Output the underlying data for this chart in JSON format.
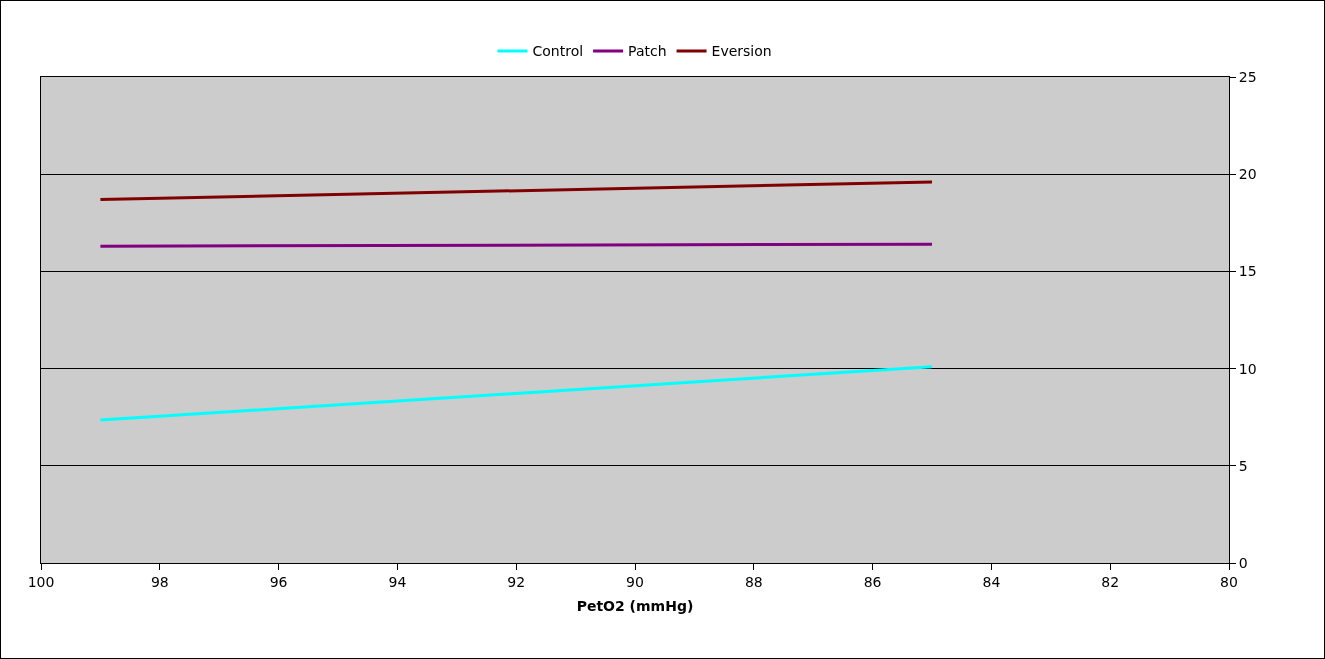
{
  "chart_data": {
    "type": "line",
    "xlabel": "PetO2 (mmHg)",
    "x": [
      99,
      85
    ],
    "series": [
      {
        "name": "Control",
        "color": "#00ffff",
        "values": [
          7.35,
          10.1
        ]
      },
      {
        "name": "Patch",
        "color": "#800080",
        "values": [
          16.3,
          16.4
        ]
      },
      {
        "name": "Eversion",
        "color": "#800000",
        "values": [
          18.7,
          19.6
        ]
      }
    ],
    "xlim": [
      100,
      80
    ],
    "xticks": [
      100,
      98,
      96,
      94,
      92,
      90,
      88,
      86,
      84,
      82,
      80
    ],
    "ylim": [
      0,
      25
    ],
    "yticks": [
      0,
      5,
      10,
      15,
      20,
      25
    ],
    "grid": "y",
    "legend": "top",
    "marker": "none",
    "line_style": "solid"
  }
}
